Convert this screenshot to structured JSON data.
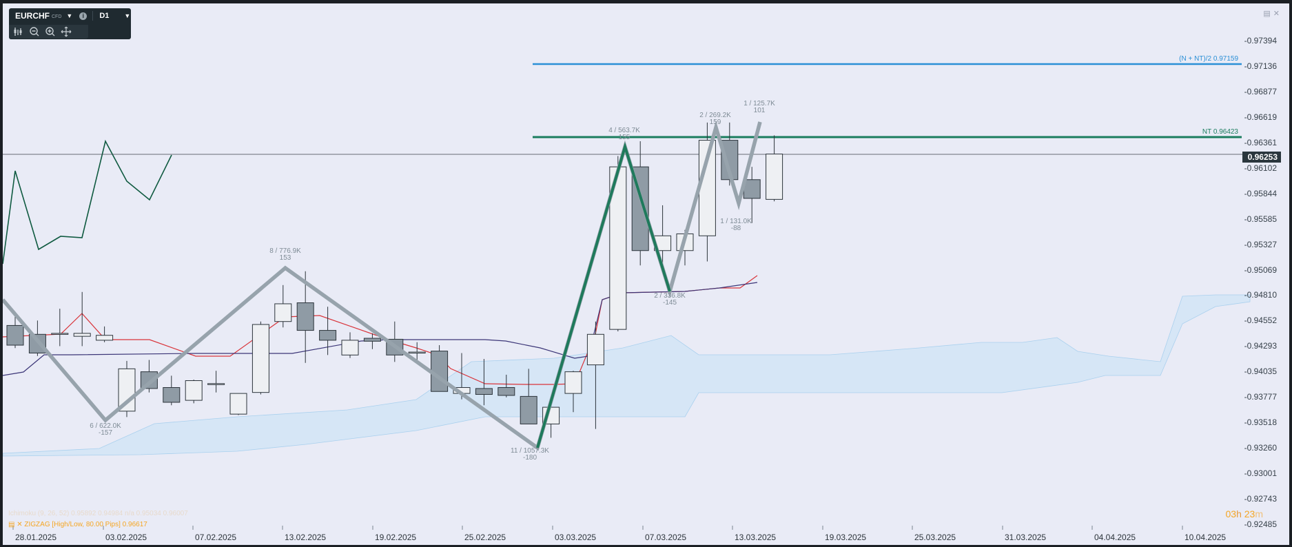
{
  "toolbar": {
    "symbol": "EURCHF",
    "symbol_suffix": "CFD",
    "timeframe": "D1",
    "icons": [
      "chart-type-icon",
      "zoom-out-icon",
      "zoom-in-icon",
      "crosshair-icon",
      "info-icon",
      "caret-down-icon"
    ]
  },
  "window_icons": [
    "restore-icon",
    "close-icon"
  ],
  "price_axis": {
    "ticks": [
      "0.97394",
      "0.97136",
      "0.96877",
      "0.96619",
      "0.96361",
      "0.96102",
      "0.95844",
      "0.95585",
      "0.95327",
      "0.95069",
      "0.94810",
      "0.94552",
      "0.94293",
      "0.94035",
      "0.93777",
      "0.93518",
      "0.93260",
      "0.93001",
      "0.92743",
      "0.92485"
    ],
    "current_price": "0.96253"
  },
  "date_axis": [
    "28.01.2025",
    "03.02.2025",
    "07.02.2025",
    "13.02.2025",
    "19.02.2025",
    "25.02.2025",
    "03.03.2025",
    "07.03.2025",
    "13.03.2025",
    "19.03.2025",
    "25.03.2025",
    "31.03.2025",
    "04.04.2025",
    "10.04.2025"
  ],
  "levels": {
    "upper_label": "(N + NT)/2 0.97159",
    "nt_label": "NT 0.96423"
  },
  "zigzag_labels": [
    {
      "line1": "6 / 622.0K",
      "line2": "-157"
    },
    {
      "line1": "8 / 776.9K",
      "line2": "153"
    },
    {
      "line1": "11 / 1057.3K",
      "line2": "-180"
    },
    {
      "line1": "4 / 563.7K",
      "line2": "155"
    },
    {
      "line1": "2 / 336.8K",
      "line2": "-145"
    },
    {
      "line1": "2 / 269.2K",
      "line2": "159"
    },
    {
      "line1": "1 / 131.0K",
      "line2": "-88"
    },
    {
      "line1": "1 / 125.7K",
      "line2": "101"
    }
  ],
  "legend": {
    "ichimoku": "Ichimoku (9, 26, 52) 0.95892 0.94984 n/a 0.95034 0.96007",
    "zigzag": "ZIGZAG [High/Low, 80.00 Pips] 0.96617"
  },
  "timer": {
    "hours": "03",
    "h_unit": "h",
    "minutes": "23",
    "m_unit": "m"
  },
  "colors": {
    "background": "#e9ebf6",
    "bull_candle": "#eef0f3",
    "bear_candle": "#8f9ba5",
    "zigzag": "#97a3ac",
    "projection": "#1f7a5c",
    "nt_level": "#1a7d5e",
    "upper_level": "#2a8fd6",
    "tenkan": "#d9343a",
    "kijun": "#3b3577",
    "cloud": "#cfe4f5",
    "oscillator": "#0f5a40",
    "timer": "#f5a623"
  },
  "chart_data": {
    "type": "candlestick",
    "title": "EURCHF D1",
    "ylim": [
      0.92485,
      0.97394
    ],
    "candles": [
      {
        "o": 0.9451,
        "h": 0.9465,
        "l": 0.9428,
        "c": 0.9431
      },
      {
        "o": 0.9442,
        "h": 0.9456,
        "l": 0.942,
        "c": 0.9423
      },
      {
        "o": 0.9442,
        "h": 0.9468,
        "l": 0.943,
        "c": 0.9443
      },
      {
        "o": 0.944,
        "h": 0.9485,
        "l": 0.943,
        "c": 0.9443
      },
      {
        "o": 0.9436,
        "h": 0.945,
        "l": 0.9434,
        "c": 0.9441
      },
      {
        "o": 0.9364,
        "h": 0.9415,
        "l": 0.9358,
        "c": 0.9407
      },
      {
        "o": 0.9404,
        "h": 0.9416,
        "l": 0.9383,
        "c": 0.9387
      },
      {
        "o": 0.9388,
        "h": 0.94,
        "l": 0.937,
        "c": 0.9373
      },
      {
        "o": 0.9375,
        "h": 0.9396,
        "l": 0.9372,
        "c": 0.9395
      },
      {
        "o": 0.9391,
        "h": 0.9405,
        "l": 0.9383,
        "c": 0.9392
      },
      {
        "o": 0.9361,
        "h": 0.9382,
        "l": 0.936,
        "c": 0.9382
      },
      {
        "o": 0.9383,
        "h": 0.9455,
        "l": 0.9381,
        "c": 0.9452
      },
      {
        "o": 0.9455,
        "h": 0.9492,
        "l": 0.9449,
        "c": 0.9473
      },
      {
        "o": 0.9474,
        "h": 0.9506,
        "l": 0.9413,
        "c": 0.9446
      },
      {
        "o": 0.9446,
        "h": 0.947,
        "l": 0.9421,
        "c": 0.9436
      },
      {
        "o": 0.9421,
        "h": 0.9444,
        "l": 0.9418,
        "c": 0.9436
      },
      {
        "o": 0.9438,
        "h": 0.9443,
        "l": 0.9427,
        "c": 0.9435
      },
      {
        "o": 0.9437,
        "h": 0.9455,
        "l": 0.9414,
        "c": 0.9421
      },
      {
        "o": 0.9424,
        "h": 0.9434,
        "l": 0.9413,
        "c": 0.9424
      },
      {
        "o": 0.9425,
        "h": 0.9431,
        "l": 0.9385,
        "c": 0.9384
      },
      {
        "o": 0.9382,
        "h": 0.9423,
        "l": 0.9376,
        "c": 0.9388
      },
      {
        "o": 0.9387,
        "h": 0.9417,
        "l": 0.937,
        "c": 0.9381
      },
      {
        "o": 0.9388,
        "h": 0.9401,
        "l": 0.9378,
        "c": 0.938
      },
      {
        "o": 0.9379,
        "h": 0.9407,
        "l": 0.9351,
        "c": 0.9351
      },
      {
        "o": 0.9351,
        "h": 0.937,
        "l": 0.9337,
        "c": 0.9368
      },
      {
        "o": 0.9382,
        "h": 0.9405,
        "l": 0.9363,
        "c": 0.9404
      },
      {
        "o": 0.9411,
        "h": 0.9455,
        "l": 0.9346,
        "c": 0.9442
      },
      {
        "o": 0.9447,
        "h": 0.9623,
        "l": 0.9445,
        "c": 0.9612
      },
      {
        "o": 0.9612,
        "h": 0.9638,
        "l": 0.9512,
        "c": 0.9527
      },
      {
        "o": 0.9527,
        "h": 0.9573,
        "l": 0.951,
        "c": 0.9542
      },
      {
        "o": 0.9527,
        "h": 0.9548,
        "l": 0.9512,
        "c": 0.9544
      },
      {
        "o": 0.9542,
        "h": 0.9657,
        "l": 0.9516,
        "c": 0.9639
      },
      {
        "o": 0.9639,
        "h": 0.9657,
        "l": 0.9593,
        "c": 0.9599
      },
      {
        "o": 0.9599,
        "h": 0.9612,
        "l": 0.9555,
        "c": 0.958
      },
      {
        "o": 0.9579,
        "h": 0.9644,
        "l": 0.9577,
        "c": 0.9625
      }
    ]
  }
}
